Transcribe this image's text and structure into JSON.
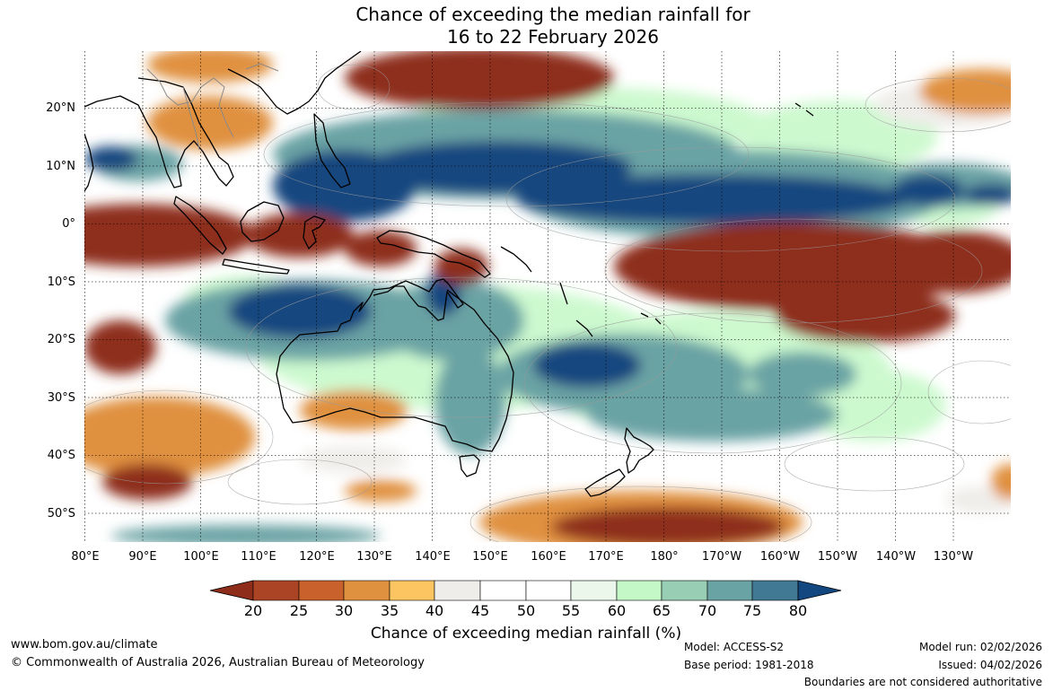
{
  "title": {
    "line1": "Chance of exceeding the median rainfall for",
    "line2": "16 to 22 February 2026"
  },
  "map": {
    "projection": "Plate Carree",
    "lat_labels": [
      "20°N",
      "10°N",
      "0°",
      "10°S",
      "20°S",
      "30°S",
      "40°S",
      "50°S"
    ],
    "lon_labels": [
      "80°E",
      "90°E",
      "100°E",
      "110°E",
      "120°E",
      "130°E",
      "140°E",
      "150°E",
      "160°E",
      "170°E",
      "180°",
      "170°W",
      "160°W",
      "150°W",
      "140°W",
      "130°W"
    ],
    "gridlines": true
  },
  "legend": {
    "title": "Chance of exceeding median rainfall (%)",
    "ticks": [
      "20",
      "25",
      "30",
      "35",
      "40",
      "45",
      "50",
      "55",
      "60",
      "65",
      "70",
      "75",
      "80"
    ],
    "colors": [
      "#8e2e1a",
      "#ab4424",
      "#c8612c",
      "#e0913f",
      "#fdc562",
      "#efedea",
      "#ffffff",
      "#ffffff",
      "#eaf7ea",
      "#c5f8c7",
      "#98ceb4",
      "#6aa3a4",
      "#417994",
      "#13477f"
    ]
  },
  "footer": {
    "website": "www.bom.gov.au/climate",
    "copyright": "© Commonwealth of Australia 2026, Australian Bureau of Meteorology",
    "model": "Model: ACCESS-S2",
    "base_period": "Base period: 1981-2018",
    "model_run": "Model run: 02/02/2026",
    "issued": "Issued: 04/02/2026",
    "disclaimer": "Boundaries are not considered authoritative"
  }
}
